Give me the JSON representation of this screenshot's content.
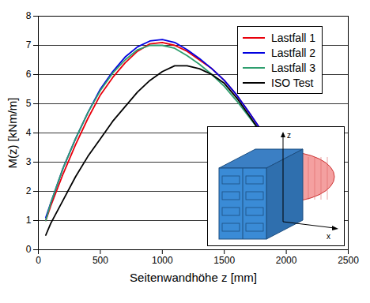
{
  "chart_data": {
    "type": "line",
    "x_label": "Seitenwandhöhe z [mm]",
    "y_label": "M(z) [kNm/m]",
    "x": [
      60,
      100,
      200,
      300,
      400,
      500,
      600,
      700,
      800,
      900,
      1000,
      1100,
      1200,
      1300,
      1400,
      1500,
      1600,
      1700,
      1780
    ],
    "series": [
      {
        "name": "Lastfall 1",
        "color": "#e8000b",
        "values": [
          1.0,
          1.5,
          2.6,
          3.6,
          4.5,
          5.3,
          5.9,
          6.4,
          6.8,
          7.05,
          7.1,
          7.0,
          6.8,
          6.5,
          6.2,
          5.8,
          5.3,
          4.7,
          4.2
        ]
      },
      {
        "name": "Lastfall 2",
        "color": "#0000e0",
        "values": [
          1.1,
          1.6,
          2.8,
          3.8,
          4.7,
          5.5,
          6.1,
          6.6,
          6.95,
          7.15,
          7.2,
          7.1,
          6.85,
          6.55,
          6.2,
          5.8,
          5.3,
          4.7,
          4.2
        ]
      },
      {
        "name": "Lastfall 3",
        "color": "#2e9e6e",
        "values": [
          1.0,
          1.6,
          2.8,
          3.8,
          4.7,
          5.45,
          6.05,
          6.5,
          6.85,
          7.0,
          7.0,
          6.9,
          6.65,
          6.35,
          6.0,
          5.6,
          5.1,
          4.55,
          4.1
        ]
      },
      {
        "name": "ISO Test",
        "color": "#000000",
        "values": [
          0.5,
          0.9,
          1.7,
          2.5,
          3.2,
          3.8,
          4.4,
          4.9,
          5.4,
          5.8,
          6.1,
          6.3,
          6.3,
          6.2,
          6.0,
          5.7,
          5.2,
          4.6,
          4.1
        ]
      }
    ],
    "xlim": [
      0,
      2500
    ],
    "xticks": [
      0,
      500,
      1000,
      1500,
      2000,
      2500
    ],
    "ylim": [
      0,
      8
    ],
    "yticks": [
      0,
      1,
      2,
      3,
      4,
      5,
      6,
      7,
      8
    ],
    "grid": true,
    "legend": "top-right",
    "annotations": [
      "z",
      "x"
    ]
  }
}
